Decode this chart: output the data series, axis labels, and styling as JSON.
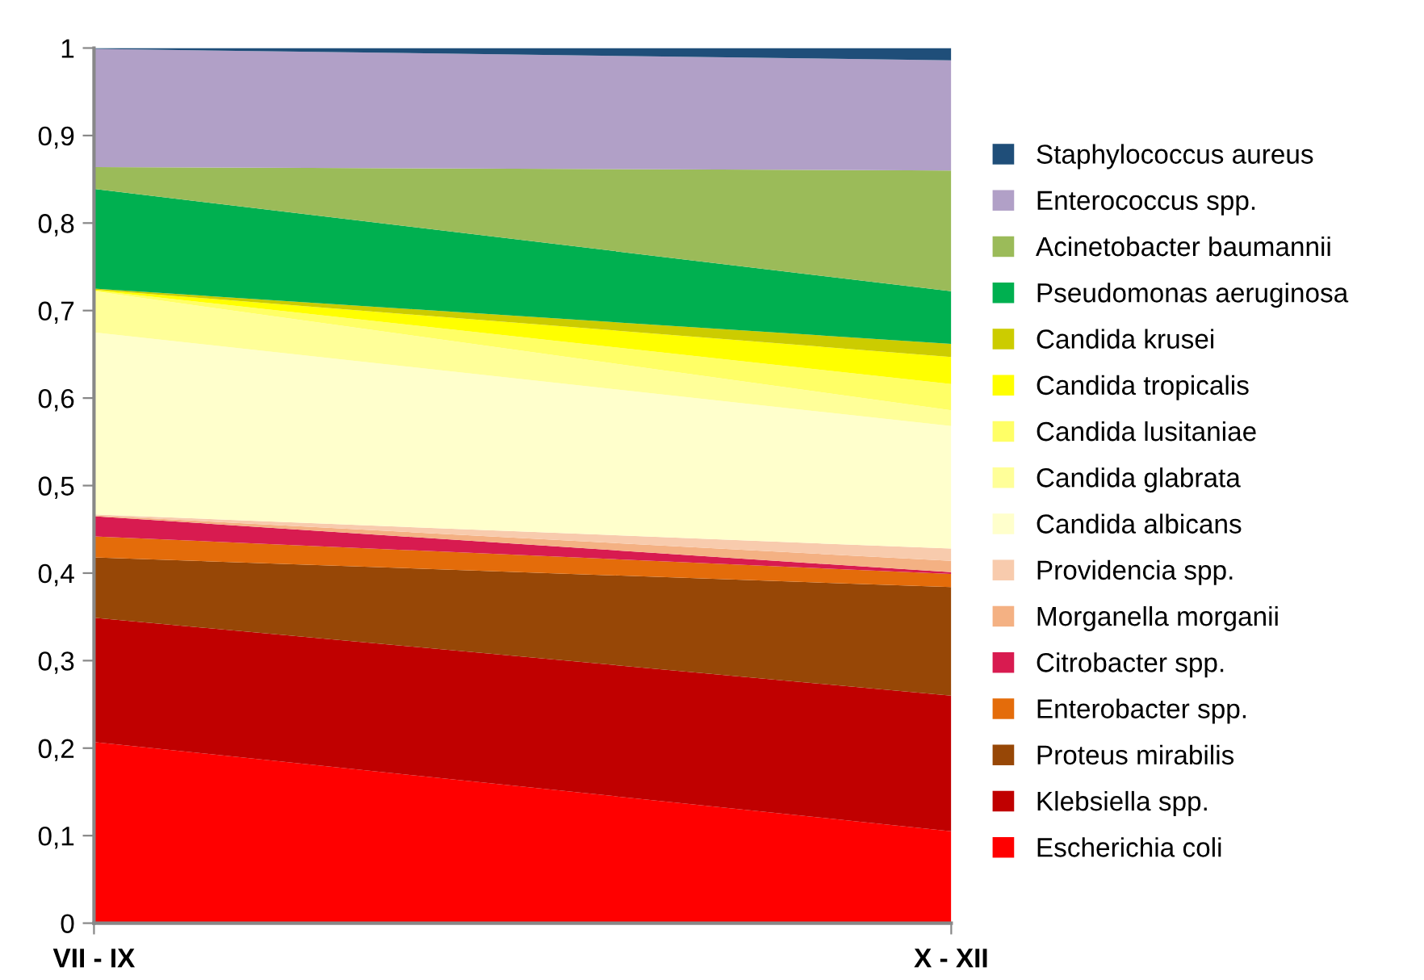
{
  "chart_data": {
    "type": "area",
    "stacked": true,
    "categories": [
      "VII - IX",
      "X - XII"
    ],
    "ylim": [
      0,
      1
    ],
    "yticks": [
      0,
      {
        "value": 0.1,
        "label": "0,1"
      },
      {
        "value": 0.2,
        "label": "0,2"
      },
      {
        "value": 0.3,
        "label": "0,3"
      },
      {
        "value": 0.4,
        "label": "0,4"
      },
      {
        "value": 0.5,
        "label": "0,5"
      },
      {
        "value": 0.6,
        "label": "0,6"
      },
      {
        "value": 0.7,
        "label": "0,7"
      },
      {
        "value": 0.8,
        "label": "0,8"
      },
      {
        "value": 0.9,
        "label": "0,9"
      },
      1
    ],
    "grid": false,
    "legend": "right",
    "series": [
      {
        "name": "Escherichia coli",
        "color": "#ff0000",
        "values": [
          0.207,
          0.105
        ]
      },
      {
        "name": "Klebsiella spp.",
        "color": "#c00000",
        "values": [
          0.142,
          0.155
        ]
      },
      {
        "name": "Proteus mirabilis",
        "color": "#974706",
        "values": [
          0.069,
          0.124
        ]
      },
      {
        "name": "Enterobacter spp.",
        "color": "#e46c0a",
        "values": [
          0.024,
          0.015
        ]
      },
      {
        "name": "Citrobacter spp.",
        "color": "#d81b50",
        "values": [
          0.023,
          0.002
        ]
      },
      {
        "name": "Morganella morganii",
        "color": "#f4b183",
        "values": [
          0.001,
          0.013
        ]
      },
      {
        "name": "Providencia spp.",
        "color": "#f8cbad",
        "values": [
          0.001,
          0.014
        ]
      },
      {
        "name": "Candida albicans",
        "color": "#ffffcc",
        "values": [
          0.208,
          0.14
        ]
      },
      {
        "name": "Candida glabrata",
        "color": "#ffff99",
        "values": [
          0.047,
          0.018
        ]
      },
      {
        "name": "Candida lusitaniae",
        "color": "#ffff66",
        "values": [
          0.001,
          0.03
        ]
      },
      {
        "name": "Candida tropicalis",
        "color": "#ffff00",
        "values": [
          0.001,
          0.031
        ]
      },
      {
        "name": "Candida krusei",
        "color": "#cccc00",
        "values": [
          0.001,
          0.015
        ]
      },
      {
        "name": "Pseudomonas aeruginosa",
        "color": "#00b050",
        "values": [
          0.114,
          0.06
        ]
      },
      {
        "name": "Acinetobacter baumannii",
        "color": "#9bbb59",
        "values": [
          0.025,
          0.138
        ]
      },
      {
        "name": "Enterococcus spp.",
        "color": "#b1a0c7",
        "values": [
          0.135,
          0.126
        ]
      },
      {
        "name": "Staphylococcus aureus",
        "color": "#1f4e79",
        "values": [
          0.001,
          0.014
        ]
      }
    ]
  }
}
